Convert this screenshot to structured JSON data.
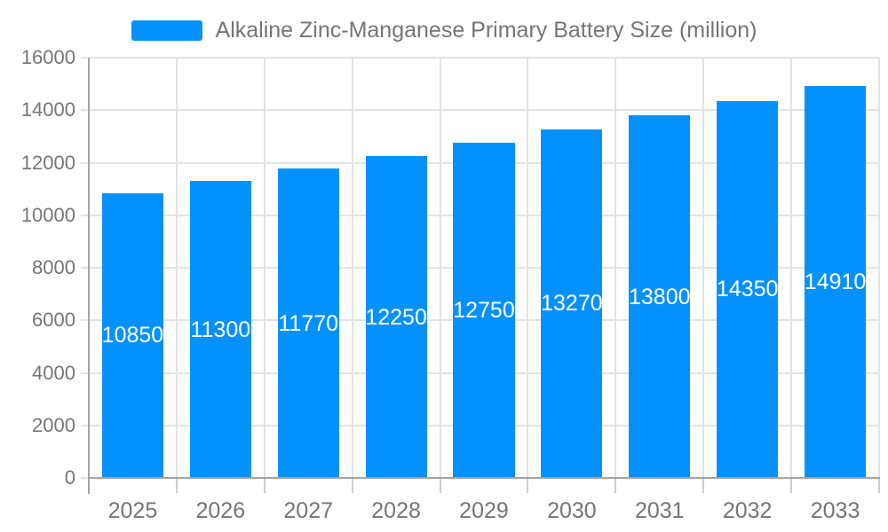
{
  "chart_data": {
    "type": "bar",
    "title": "Alkaline Zinc-Manganese Primary Battery Size (million)",
    "categories": [
      "2025",
      "2026",
      "2027",
      "2028",
      "2029",
      "2030",
      "2031",
      "2032",
      "2033"
    ],
    "values": [
      10850,
      11300,
      11770,
      12250,
      12750,
      13270,
      13800,
      14350,
      14910
    ],
    "xlabel": "",
    "ylabel": "",
    "ylim": [
      0,
      16000
    ],
    "yticks": [
      0,
      2000,
      4000,
      6000,
      8000,
      10000,
      12000,
      14000,
      16000
    ],
    "grid": true,
    "legend_position": "top",
    "value_labels": "inside-center",
    "colors": {
      "bar": "#0591fb",
      "value_label": "#ffffff",
      "axis_line": "#a3a3a3",
      "grid_line": "#e3e3e3",
      "tick_line": "#cccccc",
      "axis_text": "#757575",
      "background": "#ffffff"
    }
  }
}
